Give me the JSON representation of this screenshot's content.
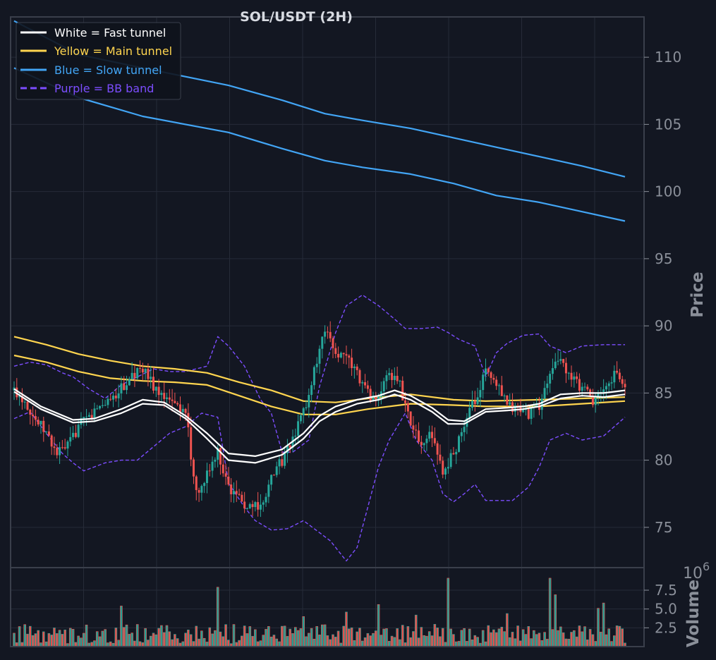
{
  "colors": {
    "background": "#131722",
    "frame": "#3a3f4b",
    "grid": "#262b38",
    "tick_text": "#8a8f99",
    "title": "#d8dbe2",
    "bull": "#26a69a",
    "bear": "#ef5350",
    "fast": "#ffffff",
    "main": "#ffd54f",
    "slow": "#42a5f5",
    "bb": "#7c4dff"
  },
  "chart_data": {
    "type": "candlestick",
    "title": "SOL/USDT (2H)",
    "price_label": "Price",
    "volume_label": "Volume",
    "volume_exponent_base": "10",
    "volume_exponent": "6",
    "ylim": [
      72,
      113
    ],
    "yticks": [
      75,
      80,
      85,
      90,
      95,
      100,
      105,
      110
    ],
    "volume_ylim": [
      0,
      10.5
    ],
    "volume_yticks": [
      2.5,
      5.0,
      7.5
    ],
    "volume_tick_labels": [
      "2.5",
      "5.0",
      "7.5"
    ],
    "grid": true,
    "legend_position": "top-left",
    "legend": [
      {
        "label": "White = Fast tunnel",
        "key": "fast",
        "dashed": false
      },
      {
        "label": "Yellow = Main tunnel",
        "key": "main",
        "dashed": false
      },
      {
        "label": "Blue = Slow tunnel",
        "key": "slow",
        "dashed": false
      },
      {
        "label": "Purple = BB band",
        "key": "bb",
        "dashed": true
      }
    ],
    "close_anchors": [
      [
        0,
        85.2
      ],
      [
        4,
        84.5
      ],
      [
        8,
        83.0
      ],
      [
        12,
        82.0
      ],
      [
        16,
        80.5
      ],
      [
        20,
        81.0
      ],
      [
        24,
        82.5
      ],
      [
        28,
        83.2
      ],
      [
        32,
        84.0
      ],
      [
        36,
        84.6
      ],
      [
        40,
        85.3
      ],
      [
        44,
        86.2
      ],
      [
        48,
        86.8
      ],
      [
        52,
        85.5
      ],
      [
        56,
        85.0
      ],
      [
        60,
        84.5
      ],
      [
        64,
        83.5
      ],
      [
        68,
        77.5
      ],
      [
        72,
        79.0
      ],
      [
        76,
        80.5
      ],
      [
        80,
        78.0
      ],
      [
        84,
        77.0
      ],
      [
        88,
        76.5
      ],
      [
        92,
        76.8
      ],
      [
        96,
        78.5
      ],
      [
        100,
        80.0
      ],
      [
        104,
        81.5
      ],
      [
        108,
        83.5
      ],
      [
        112,
        86.5
      ],
      [
        116,
        89.5
      ],
      [
        120,
        88.0
      ],
      [
        124,
        87.5
      ],
      [
        128,
        86.5
      ],
      [
        132,
        85.0
      ],
      [
        136,
        84.5
      ],
      [
        140,
        86.5
      ],
      [
        144,
        85.5
      ],
      [
        148,
        82.5
      ],
      [
        152,
        81.5
      ],
      [
        156,
        81.8
      ],
      [
        160,
        79.0
      ],
      [
        164,
        80.5
      ],
      [
        168,
        82.5
      ],
      [
        172,
        84.5
      ],
      [
        176,
        86.5
      ],
      [
        180,
        85.5
      ],
      [
        184,
        84.0
      ],
      [
        188,
        83.8
      ],
      [
        192,
        83.5
      ],
      [
        196,
        84.0
      ],
      [
        200,
        86.5
      ],
      [
        204,
        87.5
      ],
      [
        208,
        86.0
      ],
      [
        212,
        85.5
      ],
      [
        216,
        84.5
      ],
      [
        220,
        85.0
      ],
      [
        224,
        86.5
      ],
      [
        228,
        85.5
      ]
    ],
    "fast_upper": [
      [
        0,
        85.3
      ],
      [
        10,
        84.0
      ],
      [
        22,
        83.0
      ],
      [
        30,
        83.1
      ],
      [
        40,
        83.8
      ],
      [
        48,
        84.5
      ],
      [
        56,
        84.3
      ],
      [
        64,
        83.3
      ],
      [
        72,
        82.0
      ],
      [
        80,
        80.5
      ],
      [
        90,
        80.3
      ],
      [
        100,
        80.8
      ],
      [
        108,
        82.0
      ],
      [
        114,
        83.3
      ],
      [
        120,
        84.0
      ],
      [
        128,
        84.5
      ],
      [
        136,
        84.8
      ],
      [
        142,
        85.2
      ],
      [
        148,
        84.8
      ],
      [
        156,
        83.9
      ],
      [
        162,
        83.0
      ],
      [
        168,
        82.9
      ],
      [
        176,
        83.8
      ],
      [
        184,
        83.9
      ],
      [
        190,
        84.0
      ],
      [
        196,
        84.2
      ],
      [
        204,
        84.9
      ],
      [
        212,
        85.0
      ],
      [
        220,
        85.0
      ],
      [
        228,
        85.2
      ]
    ],
    "fast_lower": [
      [
        0,
        85.1
      ],
      [
        10,
        83.8
      ],
      [
        22,
        82.8
      ],
      [
        30,
        82.9
      ],
      [
        40,
        83.5
      ],
      [
        48,
        84.2
      ],
      [
        56,
        84.1
      ],
      [
        64,
        83.1
      ],
      [
        72,
        81.6
      ],
      [
        80,
        80.0
      ],
      [
        90,
        79.8
      ],
      [
        100,
        80.4
      ],
      [
        108,
        81.6
      ],
      [
        114,
        82.9
      ],
      [
        120,
        83.6
      ],
      [
        128,
        84.2
      ],
      [
        136,
        84.5
      ],
      [
        142,
        84.9
      ],
      [
        148,
        84.5
      ],
      [
        156,
        83.6
      ],
      [
        162,
        82.7
      ],
      [
        168,
        82.7
      ],
      [
        176,
        83.6
      ],
      [
        184,
        83.7
      ],
      [
        190,
        83.8
      ],
      [
        196,
        84.0
      ],
      [
        204,
        84.6
      ],
      [
        212,
        84.8
      ],
      [
        220,
        84.7
      ],
      [
        228,
        84.9
      ]
    ],
    "main_upper": [
      [
        0,
        89.2
      ],
      [
        12,
        88.6
      ],
      [
        24,
        87.9
      ],
      [
        36,
        87.4
      ],
      [
        48,
        87.0
      ],
      [
        60,
        86.8
      ],
      [
        72,
        86.5
      ],
      [
        84,
        85.8
      ],
      [
        96,
        85.2
      ],
      [
        108,
        84.4
      ],
      [
        120,
        84.3
      ],
      [
        132,
        84.6
      ],
      [
        148,
        84.9
      ],
      [
        164,
        84.5
      ],
      [
        176,
        84.4
      ],
      [
        196,
        84.5
      ],
      [
        212,
        84.6
      ],
      [
        228,
        84.7
      ]
    ],
    "main_lower": [
      [
        0,
        87.8
      ],
      [
        12,
        87.3
      ],
      [
        24,
        86.6
      ],
      [
        36,
        86.1
      ],
      [
        48,
        85.9
      ],
      [
        60,
        85.8
      ],
      [
        72,
        85.6
      ],
      [
        84,
        84.8
      ],
      [
        96,
        84.0
      ],
      [
        108,
        83.4
      ],
      [
        120,
        83.4
      ],
      [
        132,
        83.8
      ],
      [
        148,
        84.2
      ],
      [
        164,
        84.1
      ],
      [
        176,
        84.0
      ],
      [
        196,
        84.0
      ],
      [
        212,
        84.2
      ],
      [
        228,
        84.4
      ]
    ],
    "slow_upper": [
      [
        0,
        112.7
      ],
      [
        24,
        110.2
      ],
      [
        48,
        109.2
      ],
      [
        80,
        107.9
      ],
      [
        100,
        106.8
      ],
      [
        116,
        105.8
      ],
      [
        130,
        105.3
      ],
      [
        148,
        104.7
      ],
      [
        164,
        104.0
      ],
      [
        180,
        103.3
      ],
      [
        196,
        102.6
      ],
      [
        212,
        101.9
      ],
      [
        228,
        101.1
      ]
    ],
    "slow_lower": [
      [
        0,
        109.2
      ],
      [
        24,
        107.0
      ],
      [
        48,
        105.6
      ],
      [
        80,
        104.4
      ],
      [
        100,
        103.2
      ],
      [
        116,
        102.3
      ],
      [
        130,
        101.8
      ],
      [
        148,
        101.3
      ],
      [
        164,
        100.6
      ],
      [
        180,
        99.7
      ],
      [
        196,
        99.2
      ],
      [
        212,
        98.5
      ],
      [
        228,
        97.8
      ]
    ],
    "bb_upper": [
      [
        0,
        87.0
      ],
      [
        6,
        87.3
      ],
      [
        12,
        87.1
      ],
      [
        18,
        86.5
      ],
      [
        22,
        86.2
      ],
      [
        28,
        85.3
      ],
      [
        34,
        84.6
      ],
      [
        40,
        85.6
      ],
      [
        46,
        86.2
      ],
      [
        52,
        86.8
      ],
      [
        58,
        86.6
      ],
      [
        64,
        86.6
      ],
      [
        72,
        87.0
      ],
      [
        76,
        89.2
      ],
      [
        80,
        88.5
      ],
      [
        86,
        87.0
      ],
      [
        92,
        84.5
      ],
      [
        96,
        83.5
      ],
      [
        100,
        80.6
      ],
      [
        104,
        80.6
      ],
      [
        110,
        81.5
      ],
      [
        114,
        85.5
      ],
      [
        120,
        89.5
      ],
      [
        124,
        91.5
      ],
      [
        130,
        92.3
      ],
      [
        136,
        91.5
      ],
      [
        142,
        90.5
      ],
      [
        146,
        89.8
      ],
      [
        152,
        89.8
      ],
      [
        158,
        89.9
      ],
      [
        162,
        89.5
      ],
      [
        166,
        89.0
      ],
      [
        172,
        88.5
      ],
      [
        176,
        86.2
      ],
      [
        180,
        88.0
      ],
      [
        184,
        88.7
      ],
      [
        190,
        89.3
      ],
      [
        196,
        89.4
      ],
      [
        200,
        88.5
      ],
      [
        206,
        88.0
      ],
      [
        212,
        88.5
      ],
      [
        220,
        88.6
      ],
      [
        228,
        88.6
      ]
    ],
    "bb_lower": [
      [
        0,
        83.1
      ],
      [
        6,
        83.6
      ],
      [
        12,
        82.0
      ],
      [
        18,
        80.5
      ],
      [
        22,
        79.8
      ],
      [
        26,
        79.2
      ],
      [
        30,
        79.5
      ],
      [
        34,
        79.8
      ],
      [
        40,
        80.0
      ],
      [
        46,
        80.0
      ],
      [
        52,
        81.0
      ],
      [
        58,
        82.0
      ],
      [
        64,
        82.5
      ],
      [
        70,
        83.5
      ],
      [
        76,
        83.2
      ],
      [
        80,
        78.3
      ],
      [
        86,
        76.5
      ],
      [
        90,
        75.5
      ],
      [
        96,
        74.8
      ],
      [
        102,
        74.9
      ],
      [
        108,
        75.5
      ],
      [
        112,
        74.9
      ],
      [
        118,
        74.0
      ],
      [
        124,
        72.5
      ],
      [
        128,
        73.5
      ],
      [
        132,
        76.5
      ],
      [
        136,
        79.5
      ],
      [
        140,
        81.5
      ],
      [
        146,
        83.5
      ],
      [
        150,
        81.5
      ],
      [
        156,
        80.0
      ],
      [
        160,
        77.5
      ],
      [
        164,
        76.9
      ],
      [
        168,
        77.5
      ],
      [
        172,
        78.2
      ],
      [
        176,
        77.0
      ],
      [
        180,
        77.0
      ],
      [
        186,
        77.0
      ],
      [
        192,
        78.0
      ],
      [
        196,
        79.5
      ],
      [
        200,
        81.5
      ],
      [
        206,
        82.0
      ],
      [
        212,
        81.5
      ],
      [
        220,
        81.8
      ],
      [
        228,
        83.2
      ]
    ],
    "volume_highlights": [
      [
        40,
        5.4
      ],
      [
        76,
        7.9
      ],
      [
        108,
        4.0
      ],
      [
        124,
        4.6
      ],
      [
        136,
        5.6
      ],
      [
        150,
        4.2
      ],
      [
        162,
        9.1
      ],
      [
        184,
        4.4
      ],
      [
        200,
        9.1
      ],
      [
        202,
        6.9
      ],
      [
        218,
        5.1
      ],
      [
        220,
        5.8
      ]
    ]
  }
}
